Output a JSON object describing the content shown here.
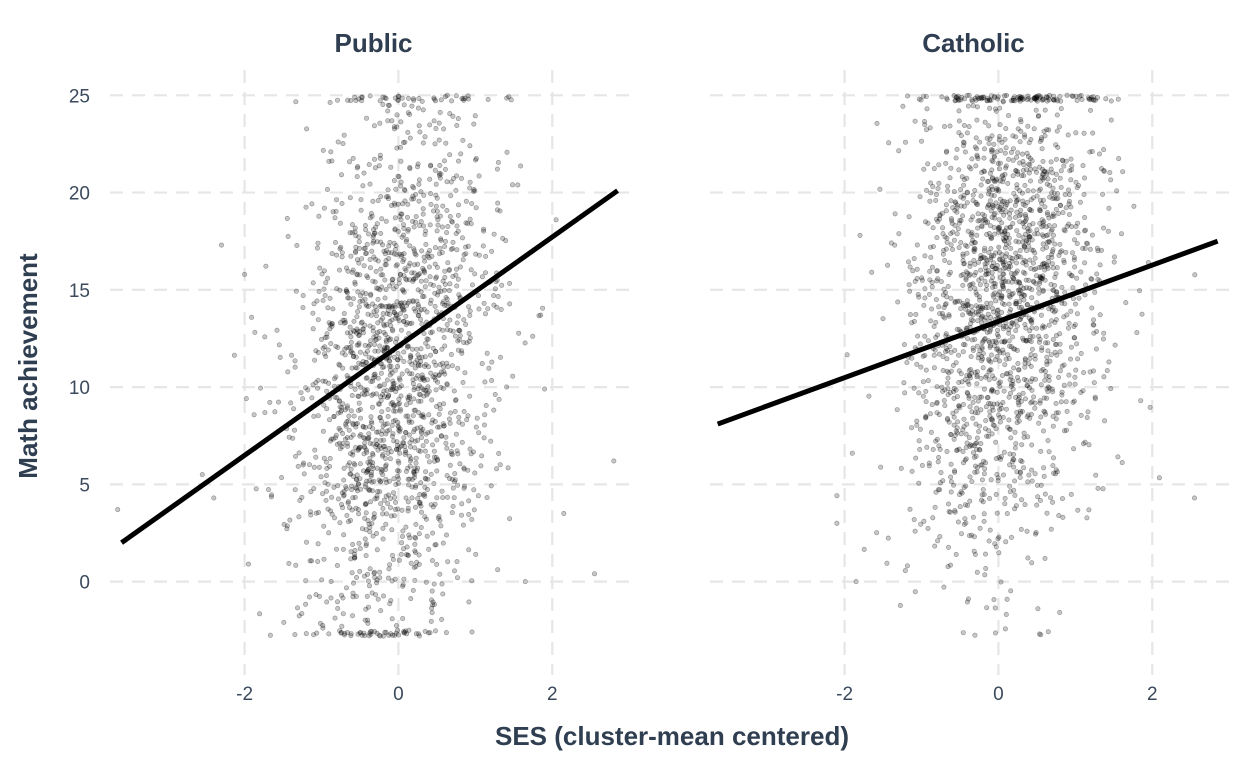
{
  "chart_data": {
    "type": "scatter",
    "xlabel": "SES (cluster-mean centered)",
    "ylabel": "Math achievement",
    "x_ticks": [
      -2,
      0,
      2
    ],
    "y_ticks": [
      0,
      5,
      10,
      15,
      20,
      25
    ],
    "xlim": [
      -3.75,
      3.05
    ],
    "ylim": [
      -4.8,
      26.3
    ],
    "grid": true,
    "legend": "none",
    "point_color": "#000000",
    "line_color": "#000000",
    "panels": [
      {
        "title": "Public",
        "fit_line": {
          "x": [
            -3.6,
            2.85
          ],
          "y": [
            2.0,
            20.1
          ]
        },
        "points": {
          "count": 1850,
          "x_center": -0.05,
          "x_sd": 0.62,
          "x_min": -3.6,
          "x_max": 2.7,
          "y_mean_at_x0": 11.0,
          "y_slope": 2.5,
          "y_sd": 7.0,
          "y_min": -2.8,
          "y_max": 25.0,
          "outliers": [
            [
              -3.65,
              3.7
            ],
            [
              -2.3,
              17.3
            ],
            [
              -2.55,
              5.5
            ],
            [
              -2.4,
              4.3
            ],
            [
              -1.95,
              0.9
            ],
            [
              2.8,
              6.2
            ],
            [
              2.55,
              0.4
            ],
            [
              2.15,
              3.5
            ],
            [
              1.9,
              9.9
            ],
            [
              2.05,
              18.6
            ],
            [
              1.85,
              13.7
            ],
            [
              1.65,
              0.0
            ]
          ]
        }
      },
      {
        "title": "Catholic",
        "fit_line": {
          "x": [
            -3.65,
            2.85
          ],
          "y": [
            8.1,
            17.5
          ]
        },
        "points": {
          "count": 1900,
          "x_center": 0.05,
          "x_sd": 0.6,
          "x_min": -2.1,
          "x_max": 2.6,
          "y_mean_at_x0": 14.5,
          "y_slope": 1.7,
          "y_sd": 6.4,
          "y_min": -2.8,
          "y_max": 25.0,
          "outliers": [
            [
              -2.1,
              3.0
            ],
            [
              2.55,
              4.3
            ],
            [
              1.85,
              9.3
            ],
            [
              1.8,
              12.8
            ],
            [
              -1.85,
              0.0
            ],
            [
              -1.8,
              17.8
            ],
            [
              1.95,
              16.4
            ],
            [
              -1.9,
              6.6
            ]
          ]
        }
      }
    ]
  }
}
